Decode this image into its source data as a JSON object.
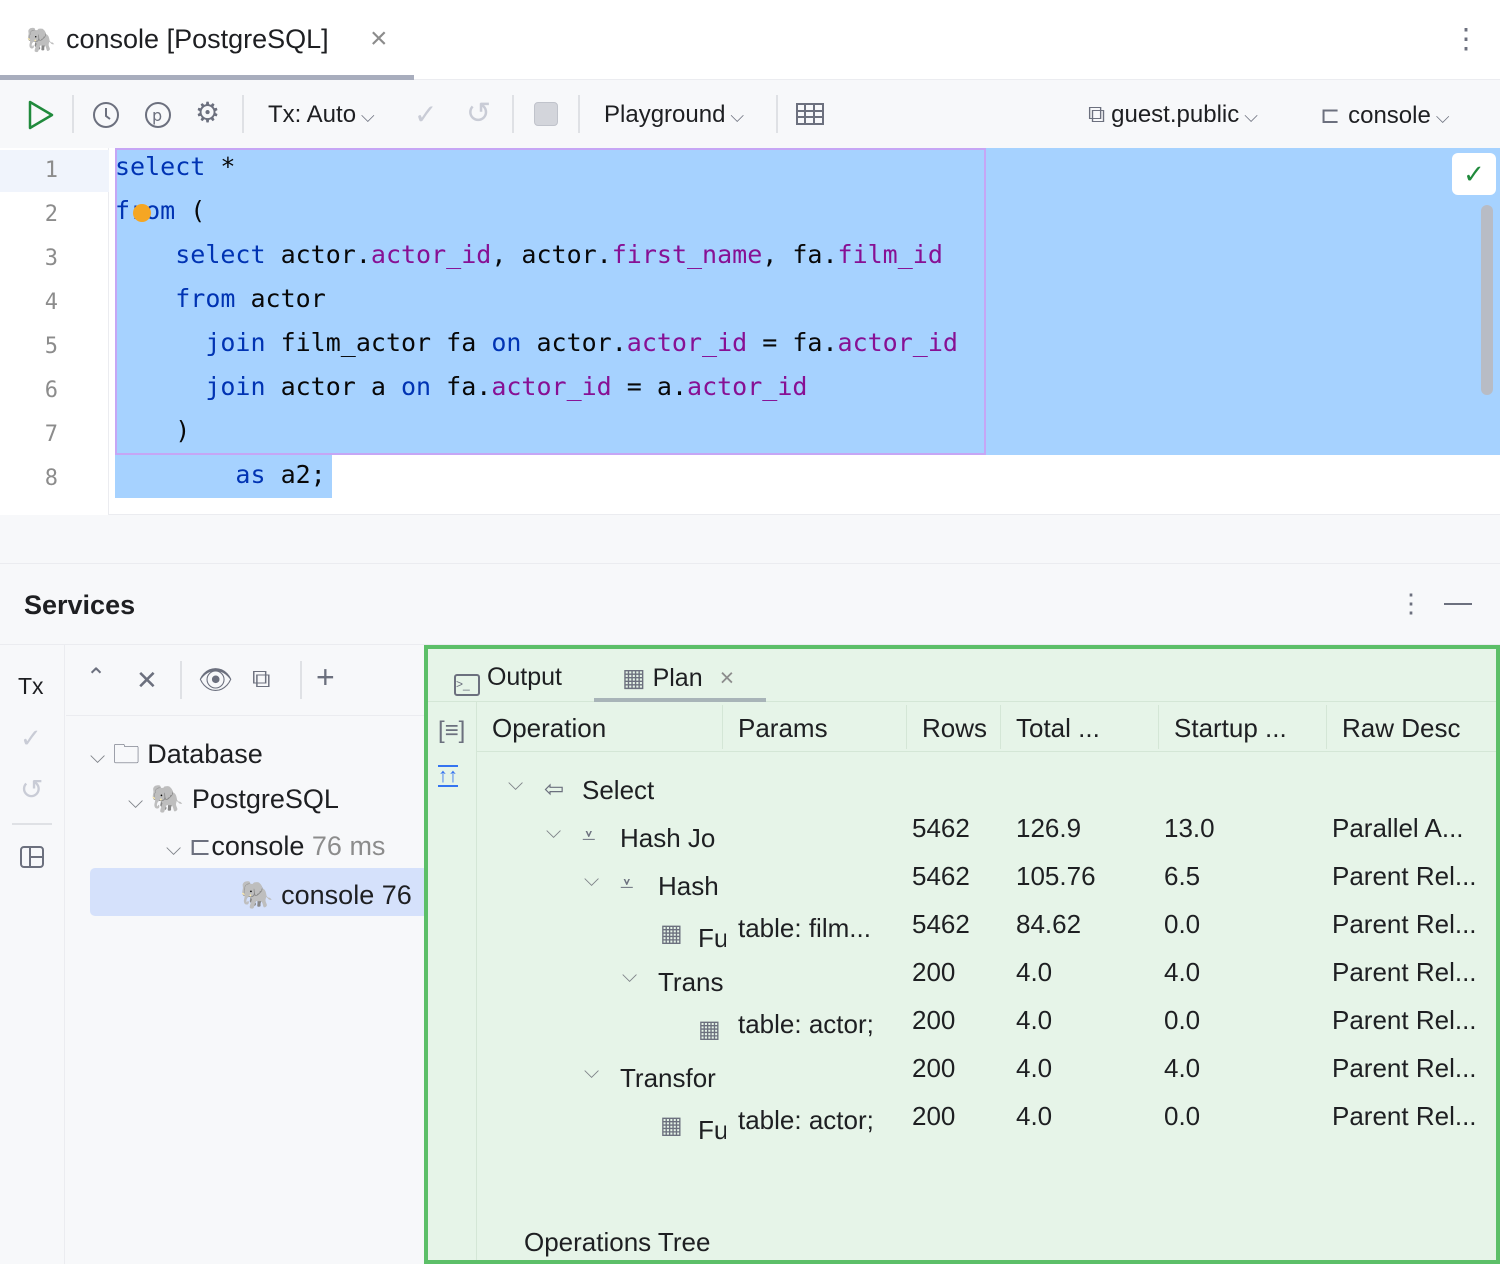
{
  "tab": {
    "title": "console [PostgreSQL]",
    "close": "×",
    "more": "⋮"
  },
  "toolbar": {
    "tx": "Tx: Auto",
    "playground": "Playground",
    "schema": "guest.public",
    "session": "console"
  },
  "editor": {
    "lines": [
      [
        {
          "t": "select",
          "c": "kw"
        },
        {
          "t": " *",
          "c": ""
        }
      ],
      [
        {
          "t": "from",
          "c": "kw"
        },
        {
          "t": " (",
          "c": ""
        }
      ],
      [
        {
          "t": "    ",
          "c": ""
        },
        {
          "t": "select",
          "c": "kw"
        },
        {
          "t": " actor.",
          "c": ""
        },
        {
          "t": "actor_id",
          "c": "col"
        },
        {
          "t": ", actor.",
          "c": ""
        },
        {
          "t": "first_name",
          "c": "col"
        },
        {
          "t": ", fa.",
          "c": ""
        },
        {
          "t": "film_id",
          "c": "col"
        }
      ],
      [
        {
          "t": "    ",
          "c": ""
        },
        {
          "t": "from",
          "c": "kw"
        },
        {
          "t": " actor",
          "c": ""
        }
      ],
      [
        {
          "t": "      ",
          "c": ""
        },
        {
          "t": "join",
          "c": "kw"
        },
        {
          "t": " film_actor fa ",
          "c": ""
        },
        {
          "t": "on",
          "c": "kw"
        },
        {
          "t": " actor.",
          "c": ""
        },
        {
          "t": "actor_id",
          "c": "col"
        },
        {
          "t": " = fa.",
          "c": ""
        },
        {
          "t": "actor_id",
          "c": "col"
        }
      ],
      [
        {
          "t": "      ",
          "c": ""
        },
        {
          "t": "join",
          "c": "kw"
        },
        {
          "t": " actor a ",
          "c": ""
        },
        {
          "t": "on",
          "c": "kw"
        },
        {
          "t": " fa.",
          "c": ""
        },
        {
          "t": "actor_id",
          "c": "col"
        },
        {
          "t": " = a.",
          "c": ""
        },
        {
          "t": "actor_id",
          "c": "col"
        }
      ],
      [
        {
          "t": "    )",
          "c": ""
        }
      ],
      [
        {
          "t": "        ",
          "c": ""
        },
        {
          "t": "as",
          "c": "kw"
        },
        {
          "t": " a2;",
          "c": ""
        }
      ]
    ],
    "line_numbers": [
      "1",
      "2",
      "3",
      "4",
      "5",
      "6",
      "7",
      "8"
    ]
  },
  "services": {
    "title": "Services",
    "tx": "Tx",
    "tree": [
      {
        "label": "Database",
        "extra": ""
      },
      {
        "label": "PostgreSQL",
        "extra": ""
      },
      {
        "label": "console",
        "extra": "76 ms"
      },
      {
        "label": "console",
        "extra": "76"
      }
    ]
  },
  "plan": {
    "tabs": [
      "Output",
      "Plan"
    ],
    "close": "×",
    "columns": [
      "Operation",
      "Params",
      "Rows",
      "Total ...",
      "Startup ...",
      "Raw Desc"
    ],
    "rows": [
      {
        "op": "Select",
        "params": "",
        "rows": "",
        "total": "",
        "startup": "",
        "raw": ""
      },
      {
        "op": "Hash Jo",
        "params": "",
        "rows": "5462",
        "total": "126.9",
        "startup": "13.0",
        "raw": "Parallel A..."
      },
      {
        "op": "Hash",
        "params": "",
        "rows": "5462",
        "total": "105.76",
        "startup": "6.5",
        "raw": "Parent Rel..."
      },
      {
        "op": "Fu",
        "params": "table: film...",
        "rows": "5462",
        "total": "84.62",
        "startup": "0.0",
        "raw": "Parent Rel..."
      },
      {
        "op": "Trans",
        "params": "",
        "rows": "200",
        "total": "4.0",
        "startup": "4.0",
        "raw": "Parent Rel..."
      },
      {
        "op": "",
        "params": "table: actor;",
        "rows": "200",
        "total": "4.0",
        "startup": "0.0",
        "raw": "Parent Rel..."
      },
      {
        "op": "Transfor",
        "params": "",
        "rows": "200",
        "total": "4.0",
        "startup": "4.0",
        "raw": "Parent Rel..."
      },
      {
        "op": "Fu",
        "params": "table: actor;",
        "rows": "200",
        "total": "4.0",
        "startup": "0.0",
        "raw": "Parent Rel..."
      }
    ],
    "footer": "Operations Tree"
  },
  "colors": {
    "selection": "#a6d2ff",
    "highlight_border": "#5cbf68",
    "keyword": "#0033b3",
    "column": "#871094",
    "run": "#208a3c"
  }
}
